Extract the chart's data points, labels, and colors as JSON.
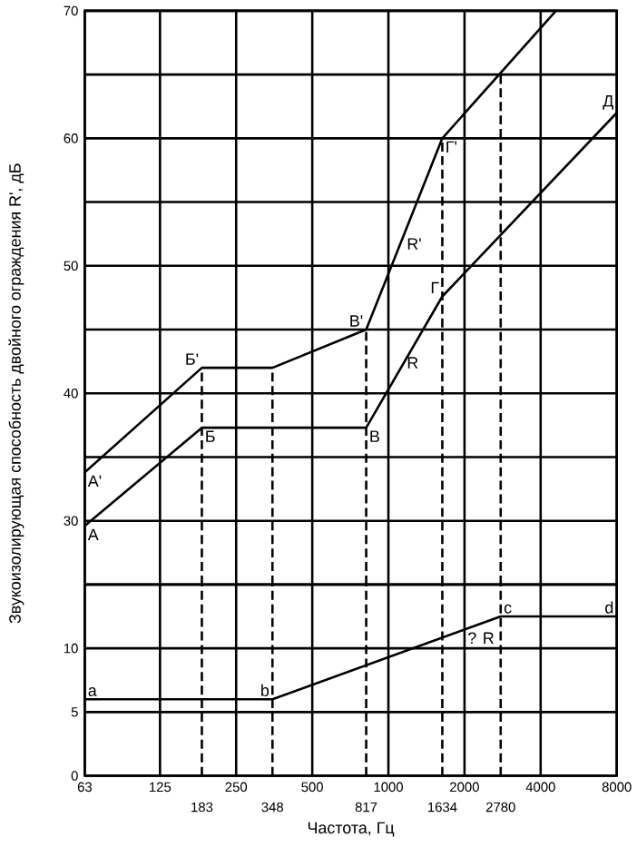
{
  "chart_data": [
    {
      "type": "line",
      "ylabel": "Звукоизолирующая способность двойного ограждения R', дБ",
      "log": "x",
      "grid": true,
      "tick_labels": "y",
      "xlim": [
        63,
        8000
      ],
      "ylim": [
        25,
        70
      ],
      "xticks": [
        63,
        125,
        250,
        500,
        1000,
        2000,
        4000,
        8000
      ],
      "yticks": [
        30,
        {
          "value": 35,
          "label": null
        },
        40,
        {
          "value": 45,
          "label": null
        },
        50,
        {
          "value": 55,
          "label": null
        },
        60,
        {
          "value": 65,
          "label": null
        },
        70
      ],
      "series": [
        {
          "color": "#000000",
          "line_style": "solid",
          "x": [
            63,
            183,
            348,
            817,
            1634,
            4600
          ],
          "values": [
            33.8,
            42,
            42,
            45,
            60,
            70
          ]
        },
        {
          "color": "#000000",
          "line_style": "solid",
          "x": [
            63,
            183,
            817,
            1634,
            8000
          ],
          "values": [
            29.6,
            37.3,
            37.3,
            47.6,
            62
          ]
        },
        {
          "color": "#000000",
          "line_style": "dashed",
          "x": [
            183,
            183
          ],
          "values": [
            25,
            42
          ]
        },
        {
          "color": "#000000",
          "line_style": "dashed",
          "x": [
            348,
            348
          ],
          "values": [
            25,
            42
          ]
        },
        {
          "color": "#000000",
          "line_style": "dashed",
          "x": [
            817,
            817
          ],
          "values": [
            25,
            45
          ]
        },
        {
          "color": "#000000",
          "line_style": "dashed",
          "x": [
            1634,
            1634
          ],
          "values": [
            25,
            60
          ]
        },
        {
          "color": "#000000",
          "line_style": "dashed",
          "x": [
            2780,
            2780
          ],
          "values": [
            25,
            65.1
          ]
        }
      ],
      "annotations": [
        {
          "text": "А'",
          "x": 63,
          "y": 33.8
        },
        {
          "text": "А",
          "x": 63,
          "y": 29.6
        },
        {
          "text": "Б'",
          "x": 183,
          "y": 42
        },
        {
          "text": "Б",
          "x": 183,
          "y": 37.3
        },
        {
          "text": "В'",
          "x": 817,
          "y": 45
        },
        {
          "text": "В",
          "x": 817,
          "y": 37.3
        },
        {
          "text": "Г'",
          "x": 1634,
          "y": 60
        },
        {
          "text": "R'",
          "x": 1150,
          "y": 52.4
        },
        {
          "text": "Г",
          "x": 1634,
          "y": 47.6
        },
        {
          "text": "R",
          "x": 1150,
          "y": 42.4
        },
        {
          "text": "Д",
          "x": 8000,
          "y": 62
        }
      ]
    },
    {
      "type": "line",
      "xlabel": "Частота, Гц",
      "log": "x",
      "grid": true,
      "xlim": [
        63,
        8000
      ],
      "ylim": [
        0,
        15
      ],
      "xticks": [
        63,
        125,
        250,
        500,
        1000,
        2000,
        4000,
        8000
      ],
      "yticks": [
        0,
        5,
        10
      ],
      "series": [
        {
          "color": "#000000",
          "line_style": "solid",
          "x": [
            63,
            348,
            2780,
            8000
          ],
          "values": [
            6,
            6,
            12.5,
            12.5
          ]
        },
        {
          "color": "#000000",
          "line_style": "dashed",
          "x": [
            183,
            183
          ],
          "values": [
            0,
            15
          ]
        },
        {
          "color": "#000000",
          "line_style": "dashed",
          "x": [
            348,
            348
          ],
          "values": [
            0,
            15
          ]
        },
        {
          "color": "#000000",
          "line_style": "dashed",
          "x": [
            817,
            817
          ],
          "values": [
            0,
            15
          ]
        },
        {
          "color": "#000000",
          "line_style": "dashed",
          "x": [
            1634,
            1634
          ],
          "values": [
            0,
            15
          ]
        },
        {
          "color": "#000000",
          "line_style": "dashed",
          "x": [
            2780,
            2780
          ],
          "values": [
            0,
            15
          ]
        }
      ],
      "annotations": [
        {
          "text": "a",
          "x": 63,
          "y": 6
        },
        {
          "text": "b",
          "x": 348,
          "y": 6
        },
        {
          "text": "? R",
          "x": 2000,
          "y": 11.5
        },
        {
          "text": "c",
          "x": 2780,
          "y": 12.5
        },
        {
          "text": "d",
          "x": 8000,
          "y": 12.5
        },
        {
          "text": "183",
          "x": 183,
          "y": 0
        },
        {
          "text": "348",
          "x": 348,
          "y": 0
        },
        {
          "text": "817",
          "x": 817,
          "y": 0
        },
        {
          "text": "1634",
          "x": 1634,
          "y": 0
        },
        {
          "text": "2780",
          "x": 2780,
          "y": 0
        }
      ]
    }
  ]
}
